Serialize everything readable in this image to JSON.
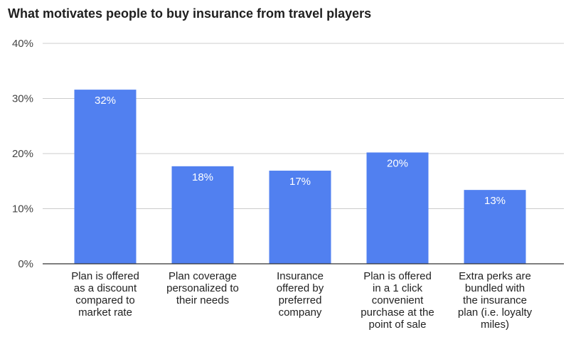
{
  "chart_data": {
    "type": "bar",
    "title": "What motivates people to buy insurance from travel players",
    "xlabel": "",
    "ylabel": "",
    "categories": [
      [
        "Plan is offered",
        "as a discount",
        "compared to",
        "market rate"
      ],
      [
        "Plan coverage",
        "personalized to",
        "their needs"
      ],
      [
        "Insurance",
        "offered by",
        "preferred",
        "company"
      ],
      [
        "Plan is offered",
        "in a 1 click",
        "convenient",
        "purchase at the",
        "point of sale"
      ],
      [
        "Extra perks are",
        "bundled with",
        "the insurance",
        "plan (i.e. loyalty",
        "miles)"
      ]
    ],
    "values": [
      31.6,
      17.7,
      16.9,
      20.2,
      13.4
    ],
    "data_labels": [
      "32%",
      "18%",
      "17%",
      "20%",
      "13%"
    ],
    "ylim": [
      0,
      40
    ],
    "yticks": [
      0,
      10,
      20,
      30,
      40
    ],
    "ytick_labels": [
      "0%",
      "10%",
      "20%",
      "30%",
      "40%"
    ],
    "grid": true,
    "legend": "none",
    "bar_color": "#5180f0",
    "grid_color": "#cccccc",
    "axis_color": "#333333"
  }
}
